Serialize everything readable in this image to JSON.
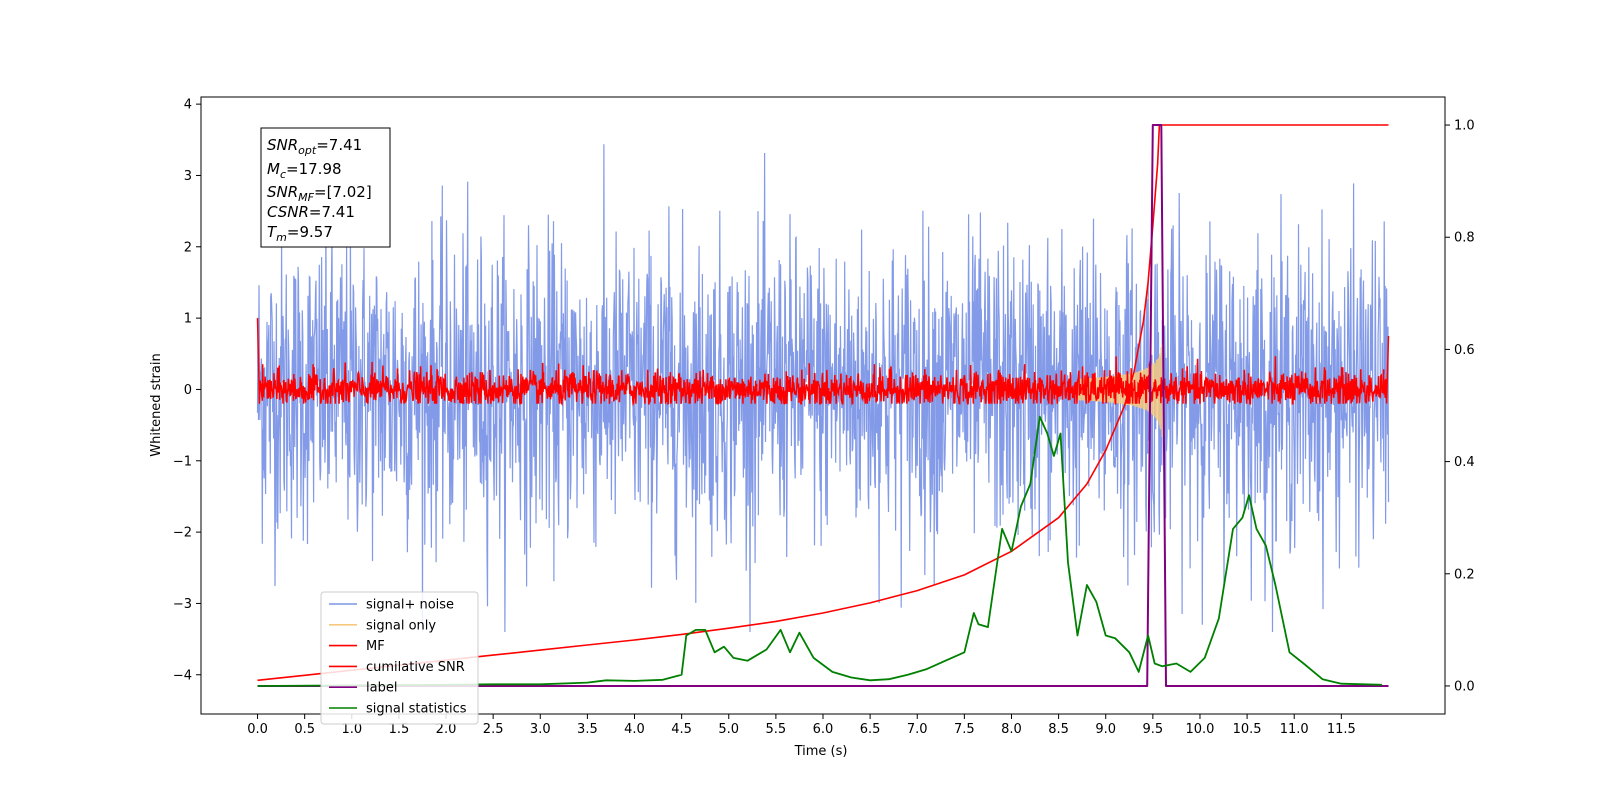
{
  "chart_data": {
    "type": "line",
    "xlabel": "Time (s)",
    "ylabel": "Whitened strain",
    "xlim": [
      -0.6,
      12.6
    ],
    "ylim": [
      -4.55,
      4.1
    ],
    "y2lim": [
      -0.05,
      1.05
    ],
    "x_ticks": [
      "0.0",
      "0.5",
      "1.0",
      "1.5",
      "2.0",
      "2.5",
      "3.0",
      "3.5",
      "4.0",
      "4.5",
      "5.0",
      "5.5",
      "6.0",
      "6.5",
      "7.0",
      "7.5",
      "8.0",
      "8.5",
      "9.0",
      "9.5",
      "10.0",
      "10.5",
      "11.0",
      "11.5"
    ],
    "y_ticks": [
      4,
      3,
      2,
      1,
      0,
      -1,
      -2,
      -3,
      -4
    ],
    "y_tick_labels": [
      "4",
      "3",
      "2",
      "1",
      "0",
      "−1",
      "−2",
      "−3",
      "−4"
    ],
    "y2_ticks": [
      1.0,
      0.8,
      0.6,
      0.4,
      0.2,
      0.0
    ],
    "y2_tick_labels": [
      "1.0",
      "0.8",
      "0.6",
      "0.4",
      "0.2",
      "0.0"
    ],
    "legend_position": "lower-left",
    "legend": [
      {
        "label": "signal+ noise",
        "color": "#7b95e6"
      },
      {
        "label": "signal only",
        "color": "#f6c97f"
      },
      {
        "label": "MF",
        "color": "#ff0000"
      },
      {
        "label": "cumilative SNR",
        "color": "#ff0000"
      },
      {
        "label": "label",
        "color": "#800080"
      },
      {
        "label": "signal statistics",
        "color": "#008000"
      }
    ],
    "annotations": {
      "snr_opt": {
        "name": "SNR",
        "sub": "opt",
        "value": "=7.41"
      },
      "mc": {
        "name": "M",
        "sub": "c",
        "value": "=17.98"
      },
      "snr_mf": {
        "name": "SNR",
        "sub": "MF",
        "value": "=[7.02]"
      },
      "csnr": {
        "name": "CSNR",
        "sub": "",
        "value": "=7.41"
      },
      "tm": {
        "name": "T",
        "sub": "m",
        "value": "=9.57"
      }
    },
    "series": [
      {
        "name": "signal+ noise",
        "axis": "left",
        "kind": "noise",
        "x_range": [
          0,
          12.0
        ],
        "amplitude_range": [
          -3.4,
          3.7
        ],
        "color": "#7b95e6"
      },
      {
        "name": "signal only",
        "axis": "left",
        "kind": "chirp",
        "x_range": [
          8.7,
          9.62
        ],
        "peak": 0.7,
        "color": "#f6c97f"
      },
      {
        "name": "MF",
        "axis": "left",
        "kind": "noise",
        "x_range": [
          0,
          12.0
        ],
        "amplitude_range": [
          -0.2,
          0.55
        ],
        "color": "#ff0000"
      },
      {
        "name": "cumilative SNR",
        "axis": "right",
        "color": "#ff0000",
        "x": [
          0.0,
          0.5,
          1.0,
          1.5,
          2.0,
          2.5,
          3.0,
          3.5,
          4.0,
          4.5,
          5.0,
          5.5,
          6.0,
          6.5,
          7.0,
          7.5,
          8.0,
          8.5,
          8.8,
          9.0,
          9.2,
          9.3,
          9.4,
          9.45,
          9.5,
          9.55,
          9.57,
          9.6,
          12.0
        ],
        "y": [
          0.01,
          0.019,
          0.028,
          0.037,
          0.046,
          0.055,
          0.064,
          0.073,
          0.082,
          0.092,
          0.103,
          0.115,
          0.13,
          0.148,
          0.17,
          0.198,
          0.24,
          0.3,
          0.36,
          0.42,
          0.5,
          0.56,
          0.65,
          0.72,
          0.82,
          0.93,
          1.0,
          1.0,
          1.0
        ]
      },
      {
        "name": "label",
        "axis": "right",
        "color": "#800080",
        "x": [
          0.0,
          9.44,
          9.5,
          9.57,
          9.59,
          9.64,
          12.0
        ],
        "y": [
          0.0,
          0.0,
          1.0,
          1.0,
          1.0,
          0.0,
          0.0
        ]
      },
      {
        "name": "signal statistics",
        "axis": "right",
        "color": "#008000",
        "x": [
          0.0,
          1.0,
          2.0,
          2.5,
          3.0,
          3.5,
          3.7,
          4.0,
          4.3,
          4.5,
          4.55,
          4.65,
          4.75,
          4.85,
          4.95,
          5.05,
          5.2,
          5.4,
          5.55,
          5.65,
          5.75,
          5.9,
          6.1,
          6.3,
          6.5,
          6.7,
          6.9,
          7.1,
          7.3,
          7.5,
          7.6,
          7.65,
          7.75,
          7.9,
          8.0,
          8.1,
          8.2,
          8.3,
          8.38,
          8.45,
          8.52,
          8.6,
          8.7,
          8.8,
          8.9,
          9.0,
          9.1,
          9.25,
          9.35,
          9.45,
          9.52,
          9.6,
          9.75,
          9.9,
          10.05,
          10.2,
          10.35,
          10.45,
          10.52,
          10.6,
          10.7,
          10.8,
          10.95,
          11.1,
          11.3,
          11.5,
          11.93
        ],
        "y": [
          0.0,
          0.001,
          0.002,
          0.003,
          0.003,
          0.006,
          0.01,
          0.009,
          0.011,
          0.02,
          0.09,
          0.1,
          0.1,
          0.06,
          0.07,
          0.05,
          0.045,
          0.065,
          0.1,
          0.06,
          0.095,
          0.05,
          0.025,
          0.015,
          0.01,
          0.012,
          0.02,
          0.03,
          0.045,
          0.06,
          0.13,
          0.11,
          0.105,
          0.28,
          0.24,
          0.32,
          0.36,
          0.48,
          0.45,
          0.41,
          0.45,
          0.22,
          0.09,
          0.18,
          0.15,
          0.09,
          0.085,
          0.06,
          0.025,
          0.09,
          0.04,
          0.035,
          0.04,
          0.025,
          0.05,
          0.12,
          0.28,
          0.3,
          0.34,
          0.28,
          0.25,
          0.18,
          0.06,
          0.04,
          0.012,
          0.004,
          0.002
        ]
      }
    ]
  }
}
